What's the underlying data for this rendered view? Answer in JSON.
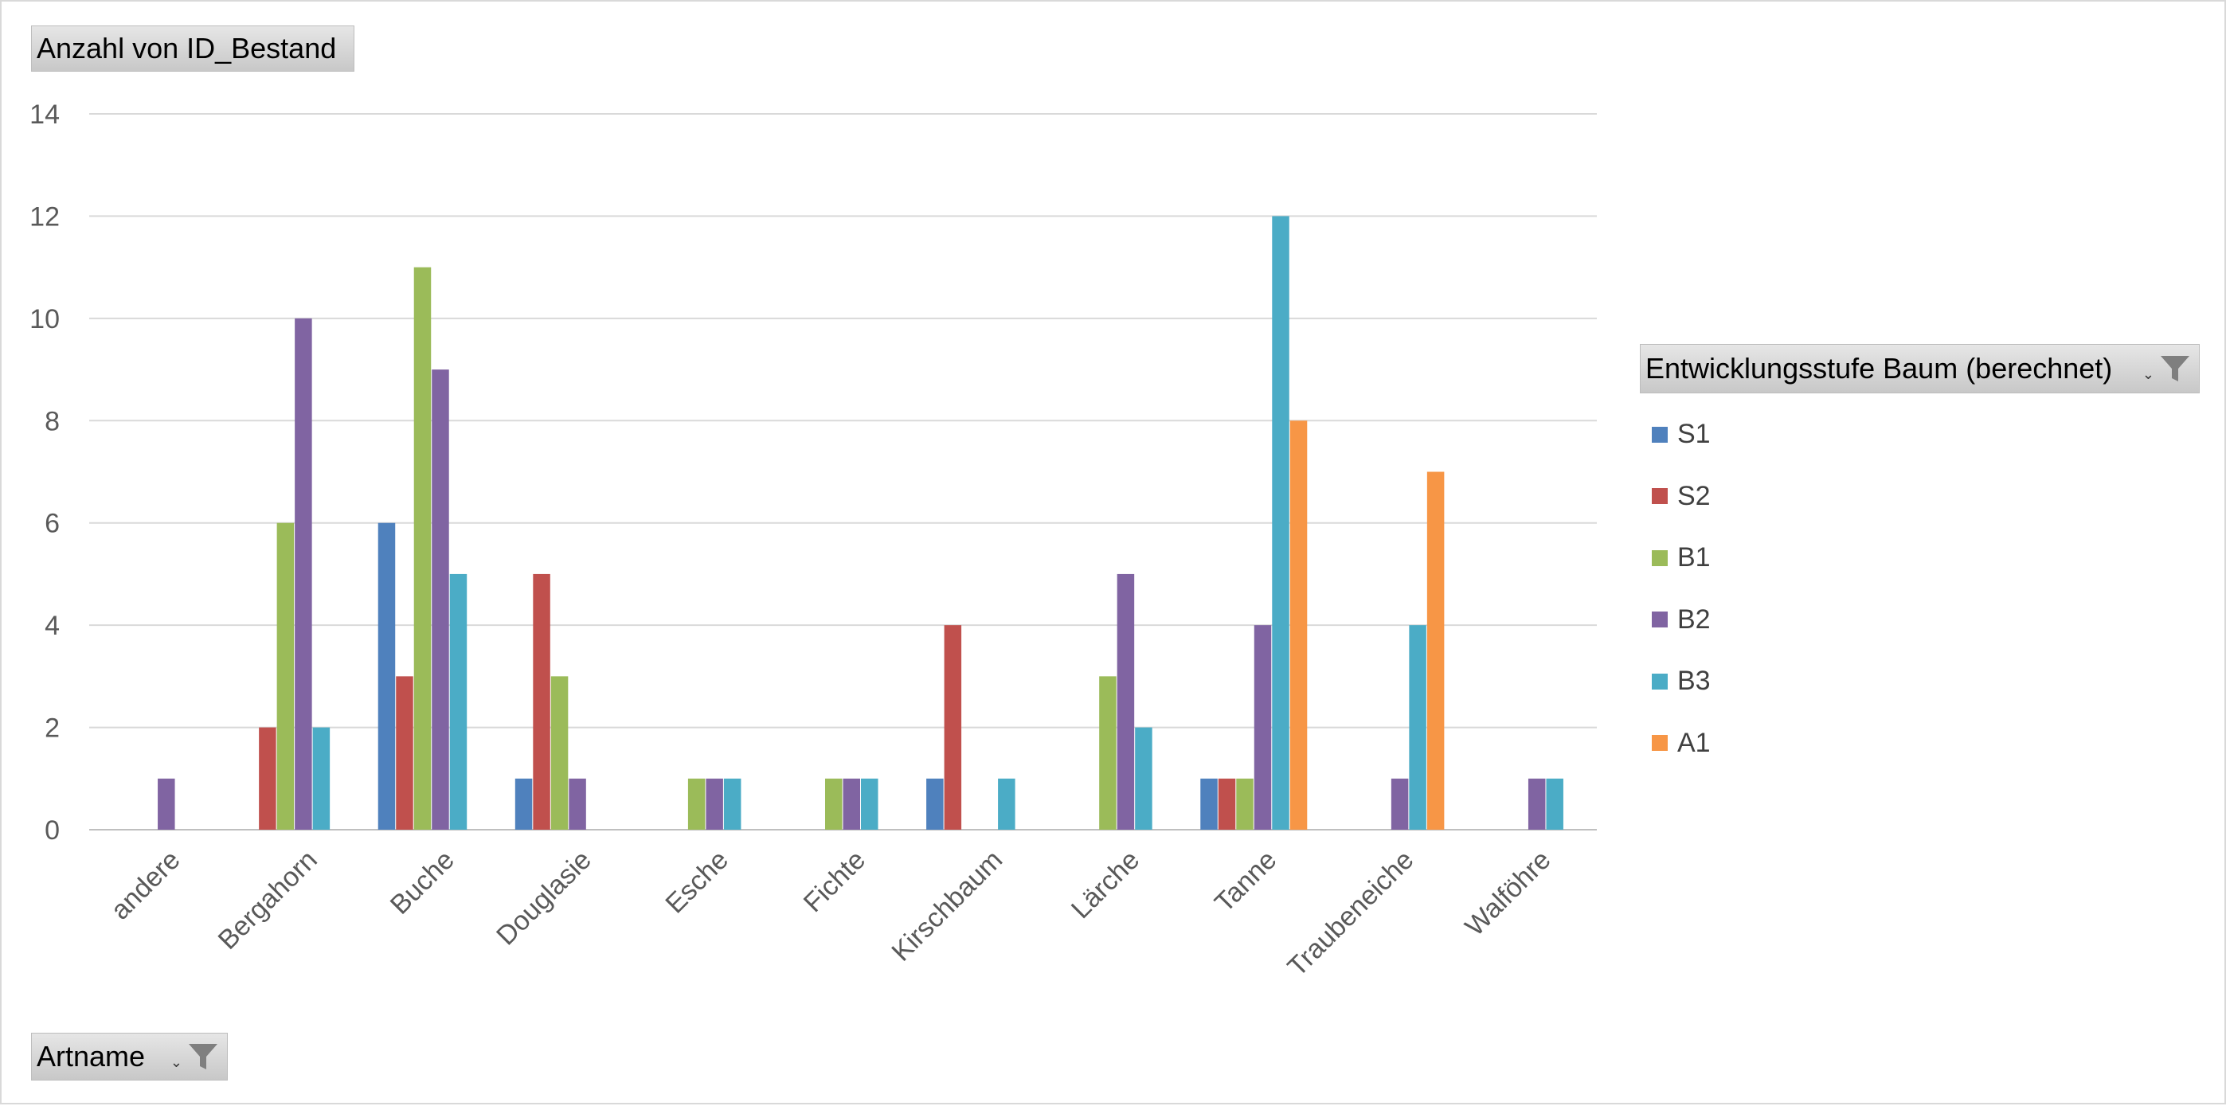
{
  "values_field": {
    "label": "Anzahl von ID_Bestand"
  },
  "legend_field": {
    "label": "Entwicklungsstufe Baum (berechnet)",
    "filter_icon": "filter-funnel-icon",
    "dropdown_icon": "dropdown-arrow-icon"
  },
  "axis_field": {
    "label": "Artname",
    "filter_icon": "filter-funnel-icon",
    "dropdown_icon": "dropdown-arrow-icon"
  },
  "chart_data": {
    "type": "bar",
    "title": "",
    "xlabel": "",
    "ylabel": "",
    "ylim": [
      0,
      14
    ],
    "yticks": [
      "0",
      "2",
      "4",
      "6",
      "8",
      "10",
      "12",
      "14"
    ],
    "grid": true,
    "legend_position": "right",
    "categories": [
      "andere",
      "Bergahorn",
      "Buche",
      "Douglasie",
      "Esche",
      "Fichte",
      "Kirschbaum",
      "Lärche",
      "Tanne",
      "Traubeneiche",
      "Walföhre"
    ],
    "series": [
      {
        "name": "S1",
        "color": "#4f81bd",
        "values": [
          0,
          0,
          6,
          1,
          0,
          0,
          1,
          0,
          1,
          0,
          0
        ]
      },
      {
        "name": "S2",
        "color": "#c0504d",
        "values": [
          0,
          2,
          3,
          5,
          0,
          0,
          4,
          0,
          1,
          0,
          0
        ]
      },
      {
        "name": "B1",
        "color": "#9bbb59",
        "values": [
          0,
          6,
          11,
          3,
          1,
          1,
          0,
          3,
          1,
          0,
          0
        ]
      },
      {
        "name": "B2",
        "color": "#8064a2",
        "values": [
          1,
          10,
          9,
          1,
          1,
          1,
          0,
          5,
          4,
          1,
          1
        ]
      },
      {
        "name": "B3",
        "color": "#4bacc6",
        "values": [
          0,
          2,
          5,
          0,
          1,
          1,
          1,
          2,
          12,
          4,
          1
        ]
      },
      {
        "name": "A1",
        "color": "#f79646",
        "values": [
          0,
          0,
          0,
          0,
          0,
          0,
          0,
          0,
          8,
          7,
          0
        ]
      }
    ]
  }
}
